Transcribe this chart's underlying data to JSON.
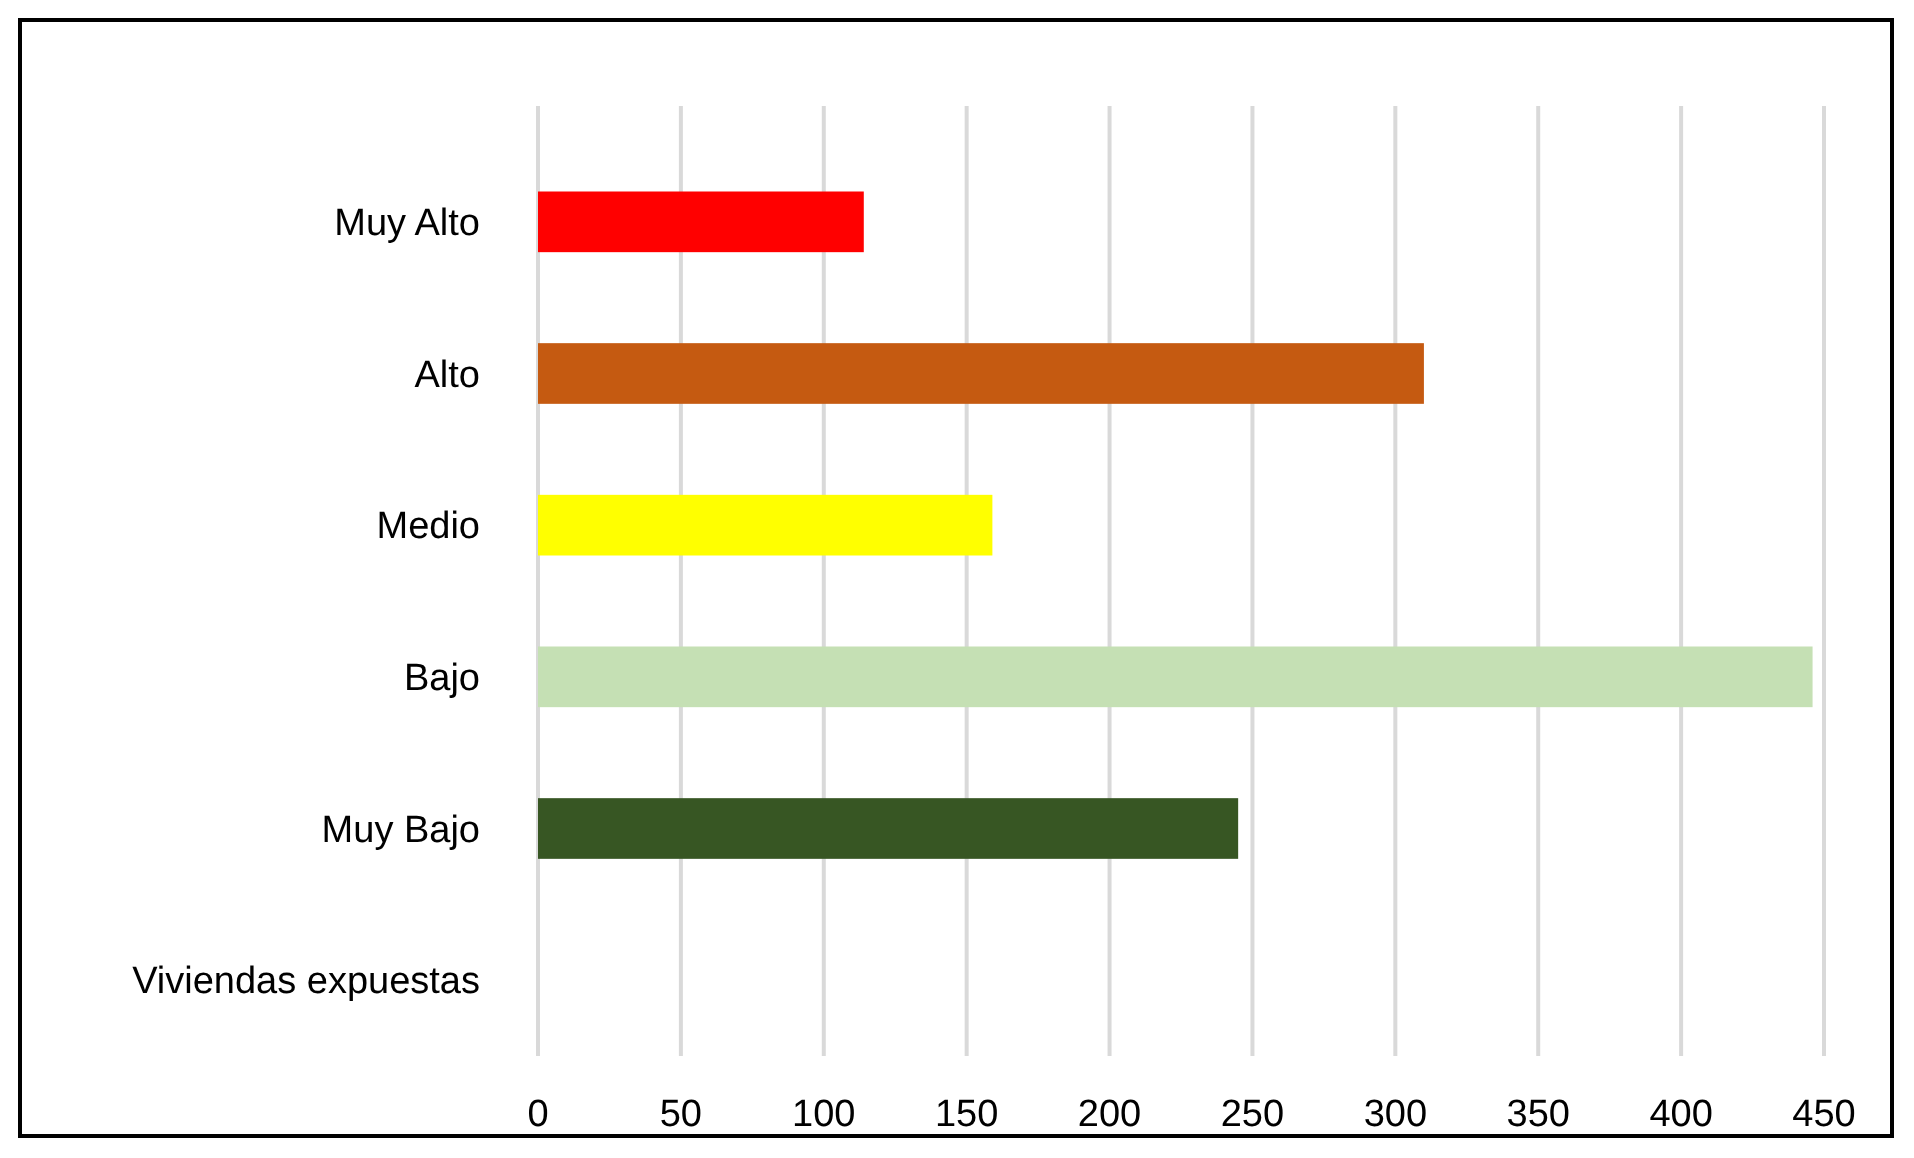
{
  "chart_data": {
    "type": "bar",
    "orientation": "horizontal",
    "categories": [
      "Muy Alto",
      "Alto",
      "Medio",
      "Bajo",
      "Muy Bajo",
      "Viviendas expuestas"
    ],
    "values": [
      114,
      310,
      159,
      446,
      245,
      null
    ],
    "colors": [
      "#ff0000",
      "#c55a11",
      "#ffff00",
      "#c5e0b4",
      "#375623",
      null
    ],
    "xlim": [
      0,
      450
    ],
    "xticks": [
      0,
      50,
      100,
      150,
      200,
      250,
      300,
      350,
      400,
      450
    ],
    "grid": "x"
  }
}
